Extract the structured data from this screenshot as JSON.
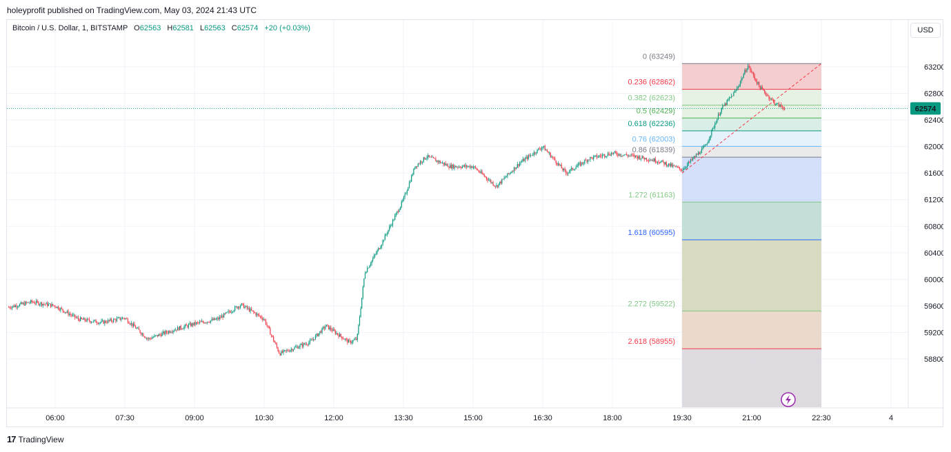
{
  "header": {
    "published_line": "holeyprofit published on TradingView.com, May 03, 2024 21:43 UTC"
  },
  "legend": {
    "symbol": "Bitcoin / U.S. Dollar, 1, BITSTAMP",
    "open_label": "O",
    "open": "62563",
    "high_label": "H",
    "high": "62581",
    "low_label": "L",
    "low": "62563",
    "close_label": "C",
    "close": "62574",
    "change": "+20 (+0.03%)"
  },
  "currency_button": "USD",
  "footer": {
    "brand": "TradingView",
    "logo_text": "17"
  },
  "colors": {
    "up": "#089981",
    "down": "#f23645",
    "grid": "#f0f3fa",
    "last_price": "#089981",
    "trend_line": "#f23645"
  },
  "chart_data": {
    "type": "candlestick",
    "title": "",
    "xlabel": "",
    "ylabel": "",
    "ylim": [
      58500,
      63500
    ],
    "y_ticks": [
      58800,
      59200,
      59600,
      60000,
      60400,
      60800,
      61200,
      61600,
      62000,
      62400,
      62800,
      63200
    ],
    "x_tick_labels": [
      "06:00",
      "07:30",
      "09:00",
      "10:30",
      "12:00",
      "13:30",
      "15:00",
      "16:30",
      "18:00",
      "19:30",
      "21:00",
      "22:30",
      "4"
    ],
    "last_price": 62574,
    "price_path": [
      {
        "t": "05:00",
        "price": 59580
      },
      {
        "t": "05:30",
        "price": 59660
      },
      {
        "t": "06:00",
        "price": 59600
      },
      {
        "t": "06:30",
        "price": 59400
      },
      {
        "t": "07:00",
        "price": 59350
      },
      {
        "t": "07:30",
        "price": 59420
      },
      {
        "t": "08:00",
        "price": 59100
      },
      {
        "t": "08:30",
        "price": 59230
      },
      {
        "t": "09:00",
        "price": 59330
      },
      {
        "t": "09:30",
        "price": 59400
      },
      {
        "t": "10:00",
        "price": 59620
      },
      {
        "t": "10:30",
        "price": 59400
      },
      {
        "t": "10:50",
        "price": 58880
      },
      {
        "t": "11:30",
        "price": 59060
      },
      {
        "t": "11:50",
        "price": 59300
      },
      {
        "t": "12:20",
        "price": 59050
      },
      {
        "t": "12:30",
        "price": 59100
      },
      {
        "t": "12:40",
        "price": 60100
      },
      {
        "t": "13:00",
        "price": 60500
      },
      {
        "t": "13:30",
        "price": 61200
      },
      {
        "t": "13:45",
        "price": 61700
      },
      {
        "t": "14:00",
        "price": 61850
      },
      {
        "t": "14:30",
        "price": 61700
      },
      {
        "t": "15:00",
        "price": 61700
      },
      {
        "t": "15:30",
        "price": 61400
      },
      {
        "t": "16:00",
        "price": 61750
      },
      {
        "t": "16:30",
        "price": 62000
      },
      {
        "t": "17:00",
        "price": 61600
      },
      {
        "t": "17:30",
        "price": 61820
      },
      {
        "t": "18:00",
        "price": 61900
      },
      {
        "t": "18:30",
        "price": 61850
      },
      {
        "t": "19:00",
        "price": 61780
      },
      {
        "t": "19:30",
        "price": 61650
      },
      {
        "t": "20:00",
        "price": 62000
      },
      {
        "t": "20:20",
        "price": 62550
      },
      {
        "t": "20:40",
        "price": 62850
      },
      {
        "t": "20:55",
        "price": 63220
      },
      {
        "t": "21:10",
        "price": 62900
      },
      {
        "t": "21:30",
        "price": 62650
      },
      {
        "t": "21:43",
        "price": 62574
      }
    ],
    "fib_retracement": {
      "levels": [
        {
          "label": "0 (63249)",
          "ratio": 0,
          "price": 63249,
          "line": "#787b86",
          "fill": "#f2c5c5",
          "text": "#787b86"
        },
        {
          "label": "0.236 (62862)",
          "ratio": 0.236,
          "price": 62862,
          "line": "#f23645",
          "fill": "#e2f0df",
          "text": "#f23645"
        },
        {
          "label": "0.382 (62623)",
          "ratio": 0.382,
          "price": 62623,
          "line": "#81c784",
          "fill": "#e2f0df",
          "text": "#81c784"
        },
        {
          "label": "0.5 (62429)",
          "ratio": 0.5,
          "price": 62429,
          "line": "#4caf50",
          "fill": "#d3ebe4",
          "text": "#4caf50"
        },
        {
          "label": "0.618 (62236)",
          "ratio": 0.618,
          "price": 62236,
          "line": "#089981",
          "fill": "#e0f0fb",
          "text": "#089981"
        },
        {
          "label": "0.76 (62003)",
          "ratio": 0.76,
          "price": 62003,
          "line": "#64b5f6",
          "fill": "#e6e6e6",
          "text": "#64b5f6"
        },
        {
          "label": "0.86 (61839)",
          "ratio": 0.86,
          "price": 61839,
          "line": "#787b86",
          "fill": "#cdd9f8",
          "text": "#787b86"
        },
        {
          "label": "1.272 (61163)",
          "ratio": 1.272,
          "price": 61163,
          "line": "#81c784",
          "fill": "#b8d9d0",
          "text": "#81c784"
        },
        {
          "label": "1.618 (60595)",
          "ratio": 1.618,
          "price": 60595,
          "line": "#2962ff",
          "fill": "#d2d5b6",
          "text": "#2962ff"
        },
        {
          "label": "2.272 (59522)",
          "ratio": 2.272,
          "price": 59522,
          "line": "#81c784",
          "fill": "#e8d4c3",
          "text": "#81c784"
        },
        {
          "label": "2.618 (58955)",
          "ratio": 2.618,
          "price": 58955,
          "line": "#f23645",
          "fill": "#d8d4db",
          "text": "#f23645"
        }
      ],
      "anchor_start": {
        "t": "19:30",
        "price": 61600
      },
      "anchor_end": {
        "t": "22:30",
        "price": 63249
      }
    }
  }
}
